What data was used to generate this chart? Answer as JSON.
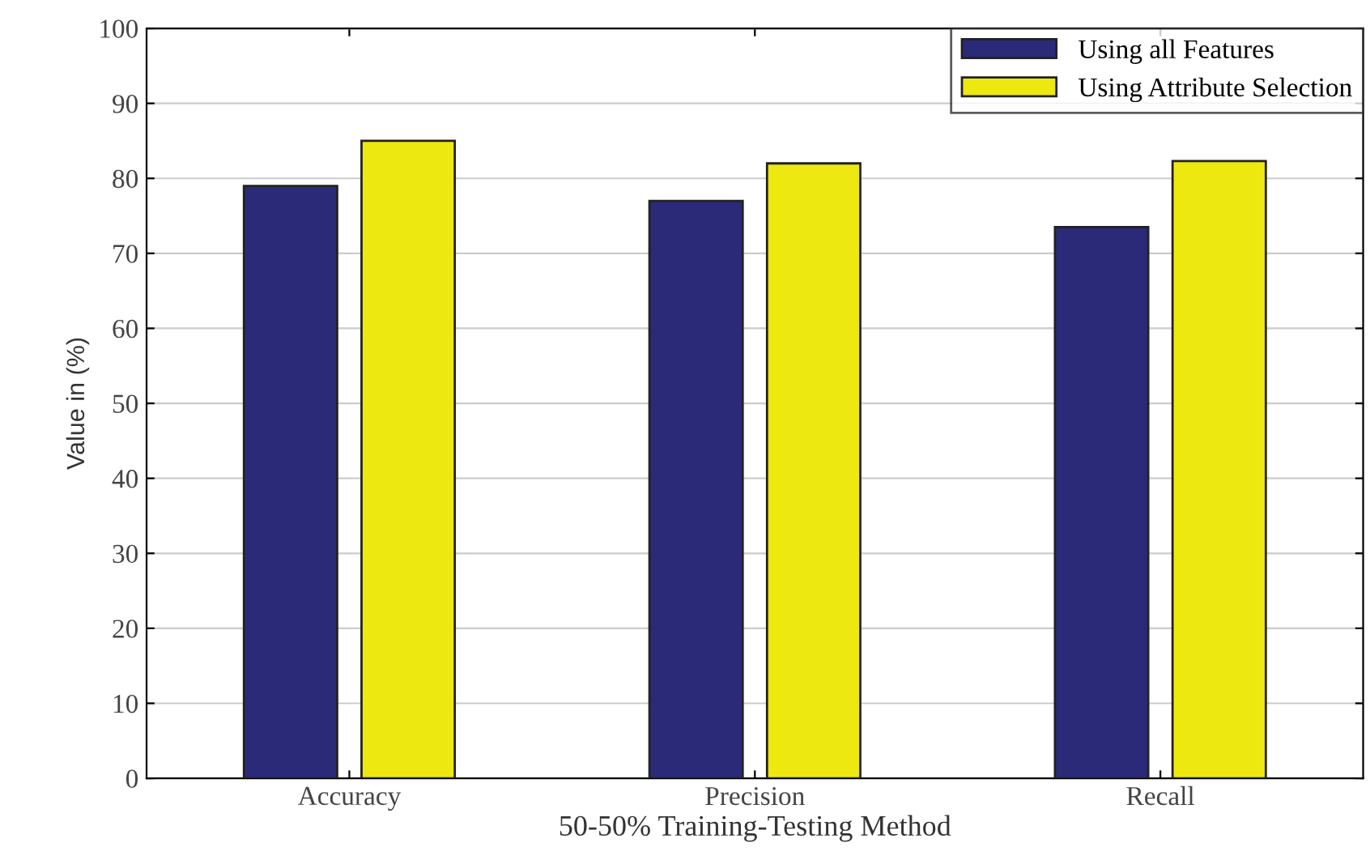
{
  "chart_data": {
    "type": "bar",
    "xlabel": "50-50% Training-Testing Method",
    "ylabel": "Value in (%)",
    "categories": [
      "Accuracy",
      "Precision",
      "Recall"
    ],
    "series": [
      {
        "name": "Using all Features",
        "color": "#2b2a78",
        "values": [
          79,
          77,
          73.5
        ]
      },
      {
        "name": "Using Attribute Selection",
        "color": "#eee811",
        "values": [
          85,
          82,
          82.3
        ]
      }
    ],
    "ylim": [
      0,
      100
    ],
    "yticks": [
      0,
      10,
      20,
      30,
      40,
      50,
      60,
      70,
      80,
      90,
      100
    ],
    "grid": "y",
    "legend": "top right"
  }
}
